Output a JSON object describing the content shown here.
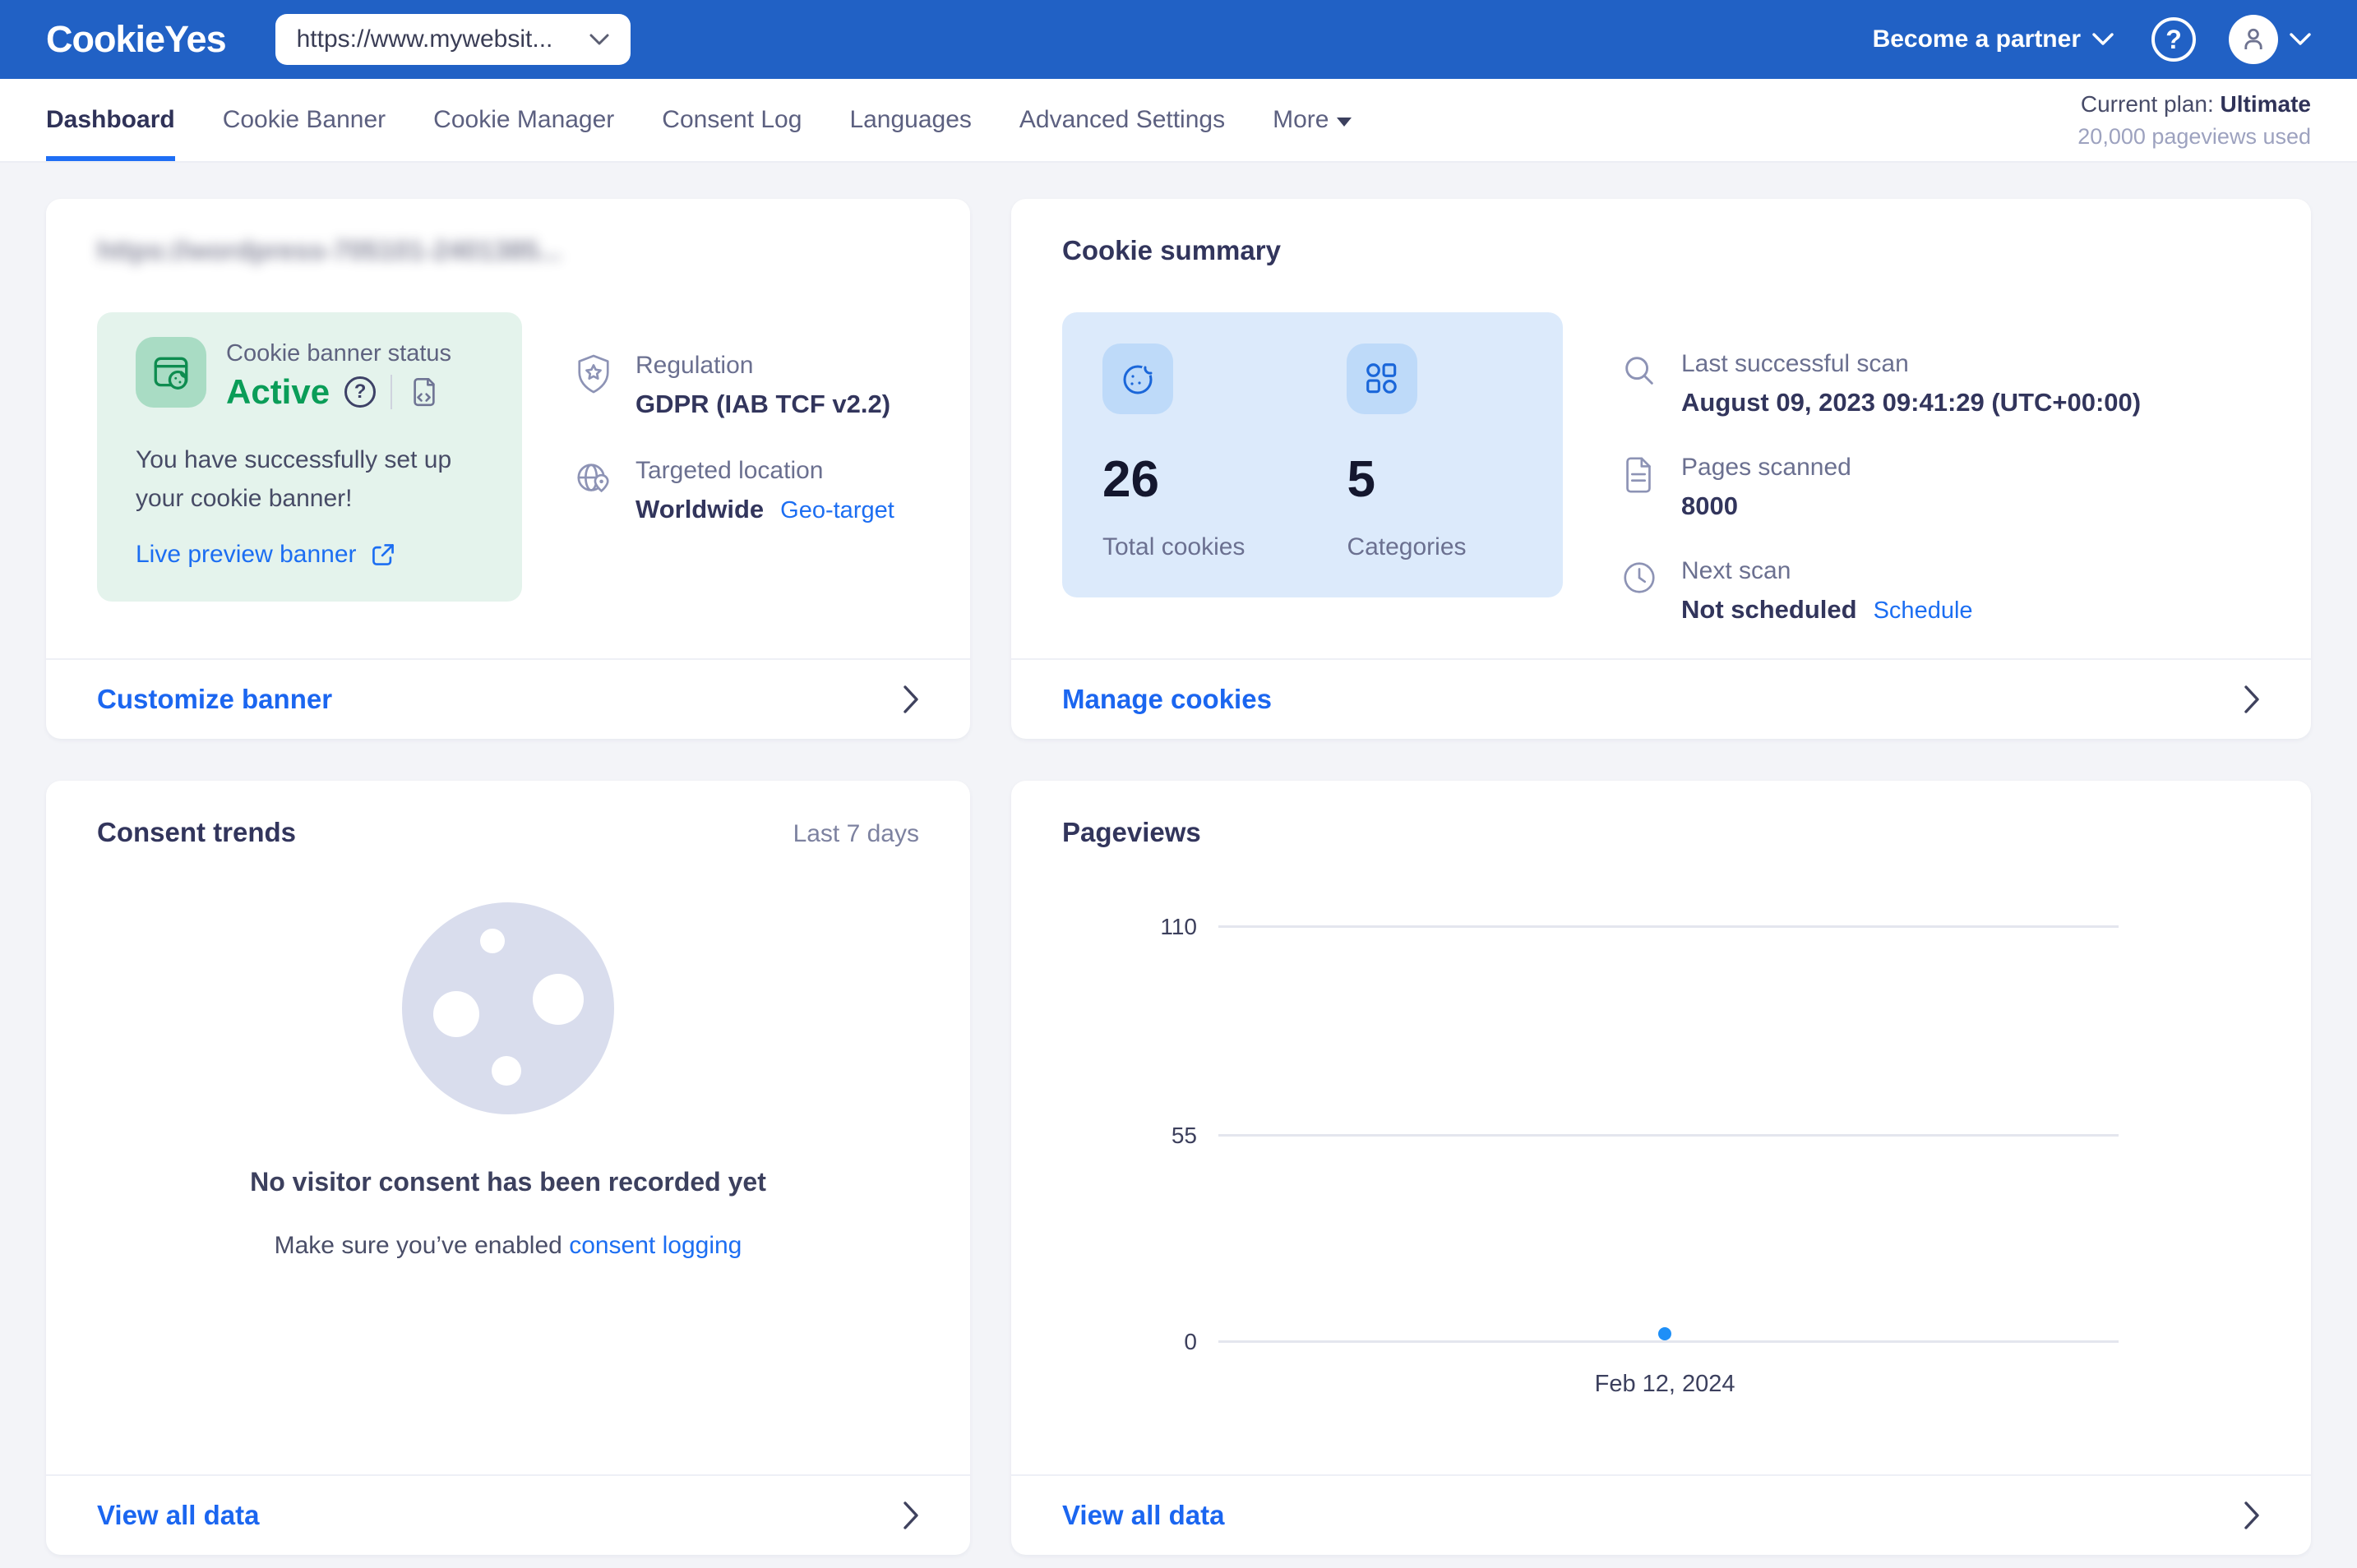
{
  "header": {
    "logo": "CookieYes",
    "site_selector": "https://www.mywebsit...",
    "become_partner": "Become a partner",
    "plan_label": "Current plan: ",
    "plan_name": "Ultimate",
    "plan_usage": "20,000 pageviews used"
  },
  "nav": {
    "tabs": [
      "Dashboard",
      "Cookie Banner",
      "Cookie Manager",
      "Consent Log",
      "Languages",
      "Advanced Settings",
      "More"
    ]
  },
  "banner_card": {
    "site_url_blurred": "https://wordpress-705101-2401385...",
    "status_label": "Cookie banner status",
    "status_value": "Active",
    "success_message": "You have successfully set up your cookie banner!",
    "live_preview": "Live preview banner",
    "regulation_label": "Regulation",
    "regulation_value": "GDPR (IAB TCF v2.2)",
    "location_label": "Targeted location",
    "location_value": "Worldwide",
    "geo_target_link": "Geo-target",
    "footer_link": "Customize banner"
  },
  "summary_card": {
    "title": "Cookie summary",
    "total_cookies": "26",
    "total_cookies_label": "Total cookies",
    "categories": "5",
    "categories_label": "Categories",
    "last_scan_label": "Last successful scan",
    "last_scan_value": "August 09, 2023 09:41:29 (UTC+00:00)",
    "pages_scanned_label": "Pages scanned",
    "pages_scanned_value": "8000",
    "next_scan_label": "Next scan",
    "next_scan_value": "Not scheduled",
    "schedule_link": "Schedule",
    "footer_link": "Manage cookies"
  },
  "consent_card": {
    "title": "Consent trends",
    "range": "Last 7 days",
    "empty_title": "No visitor consent has been recorded yet",
    "empty_hint_prefix": "Make sure you’ve enabled ",
    "empty_hint_link": "consent logging",
    "footer_link": "View all data"
  },
  "pageviews_card": {
    "title": "Pageviews",
    "footer_link": "View all data"
  },
  "chart_data": {
    "type": "line",
    "title": "Pageviews",
    "x": [
      "Feb 12, 2024"
    ],
    "series": [
      {
        "name": "Pageviews",
        "values": [
          2
        ]
      }
    ],
    "yticks": [
      0,
      55,
      110
    ],
    "ylim": [
      0,
      110
    ],
    "grid": "horizontal",
    "legend": "none",
    "point_color": "#1e8ff7"
  }
}
